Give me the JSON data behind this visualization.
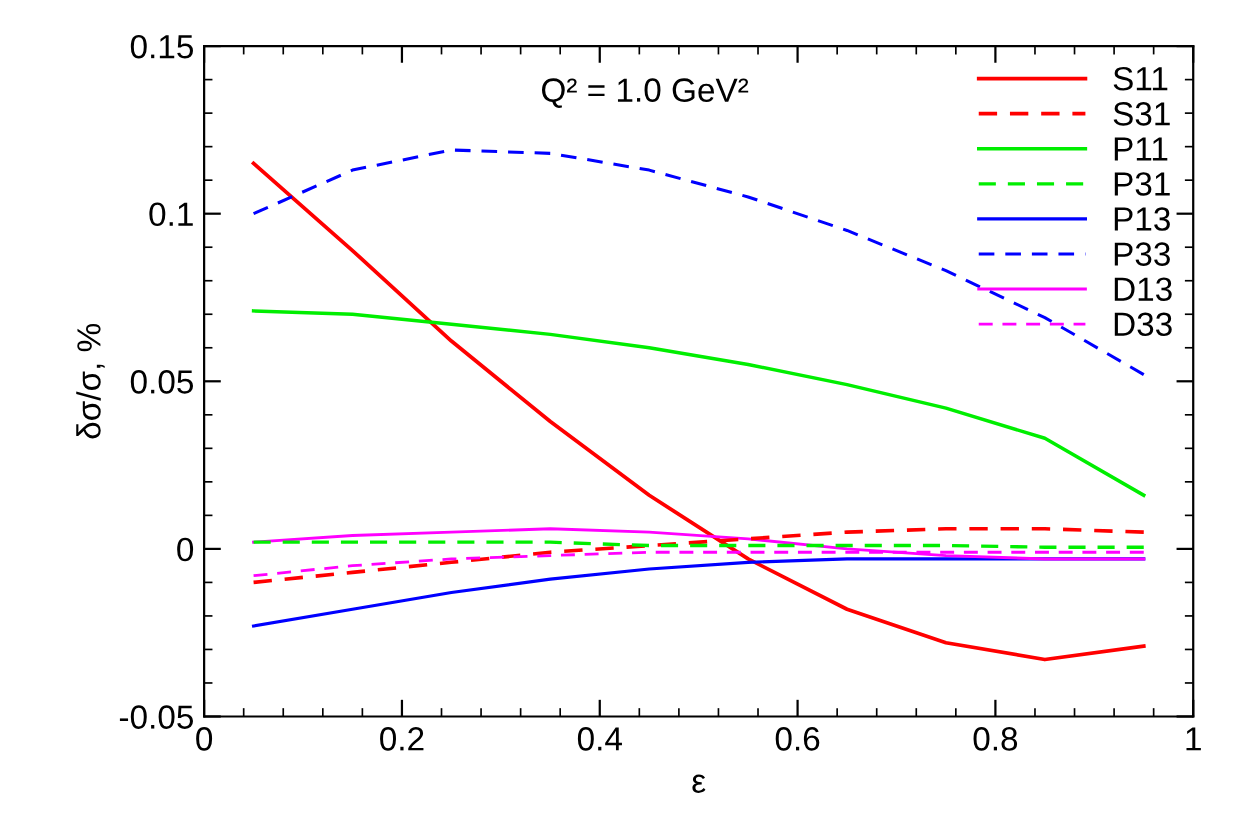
{
  "chart_data": {
    "type": "line",
    "xlabel": "ε",
    "ylabel": "δσ/σ, %",
    "annotations": [
      "Q² = 1.0 GeV²"
    ],
    "x": [
      0.05,
      0.15,
      0.25,
      0.35,
      0.45,
      0.55,
      0.65,
      0.75,
      0.85,
      0.95
    ],
    "series": [
      {
        "name": "S11",
        "color": "#ff0000",
        "line_style": "solid",
        "values": [
          0.115,
          0.089,
          0.062,
          0.038,
          0.016,
          -0.003,
          -0.018,
          -0.028,
          -0.033,
          -0.029
        ]
      },
      {
        "name": "S31",
        "color": "#ff0000",
        "line_style": "dashed",
        "values": [
          -0.01,
          -0.007,
          -0.004,
          -0.001,
          0.001,
          0.003,
          0.005,
          0.006,
          0.006,
          0.005
        ]
      },
      {
        "name": "P11",
        "color": "#00ee00",
        "line_style": "solid",
        "values": [
          0.071,
          0.07,
          0.067,
          0.064,
          0.06,
          0.055,
          0.049,
          0.042,
          0.033,
          0.016
        ]
      },
      {
        "name": "P31",
        "color": "#00ee00",
        "line_style": "dashed",
        "values": [
          0.002,
          0.002,
          0.002,
          0.002,
          0.001,
          0.001,
          0.001,
          0.001,
          0.0005,
          0.0005
        ]
      },
      {
        "name": "P13",
        "color": "#0000ff",
        "line_style": "solid",
        "values": [
          -0.023,
          -0.018,
          -0.013,
          -0.009,
          -0.006,
          -0.004,
          -0.003,
          -0.003,
          -0.003,
          -0.003
        ]
      },
      {
        "name": "P33",
        "color": "#0000ff",
        "line_style": "dashed",
        "values": [
          0.1,
          0.113,
          0.119,
          0.118,
          0.113,
          0.105,
          0.095,
          0.083,
          0.069,
          0.052
        ]
      },
      {
        "name": "D13",
        "color": "#ff00ff",
        "line_style": "solid",
        "values": [
          0.002,
          0.004,
          0.005,
          0.006,
          0.005,
          0.003,
          0.0,
          -0.002,
          -0.003,
          -0.003
        ]
      },
      {
        "name": "D33",
        "color": "#ff00ff",
        "line_style": "dashed",
        "values": [
          -0.008,
          -0.005,
          -0.003,
          -0.002,
          -0.001,
          -0.001,
          -0.001,
          -0.001,
          -0.001,
          -0.001
        ]
      }
    ],
    "xlim": [
      0,
      1
    ],
    "ylim": [
      -0.05,
      0.15
    ],
    "xticks": [
      0,
      0.2,
      0.4,
      0.6,
      0.8,
      1
    ],
    "yticks": [
      -0.05,
      0,
      0.05,
      0.1,
      0.15
    ],
    "grid": false,
    "legend": "top right",
    "marker": "none"
  }
}
